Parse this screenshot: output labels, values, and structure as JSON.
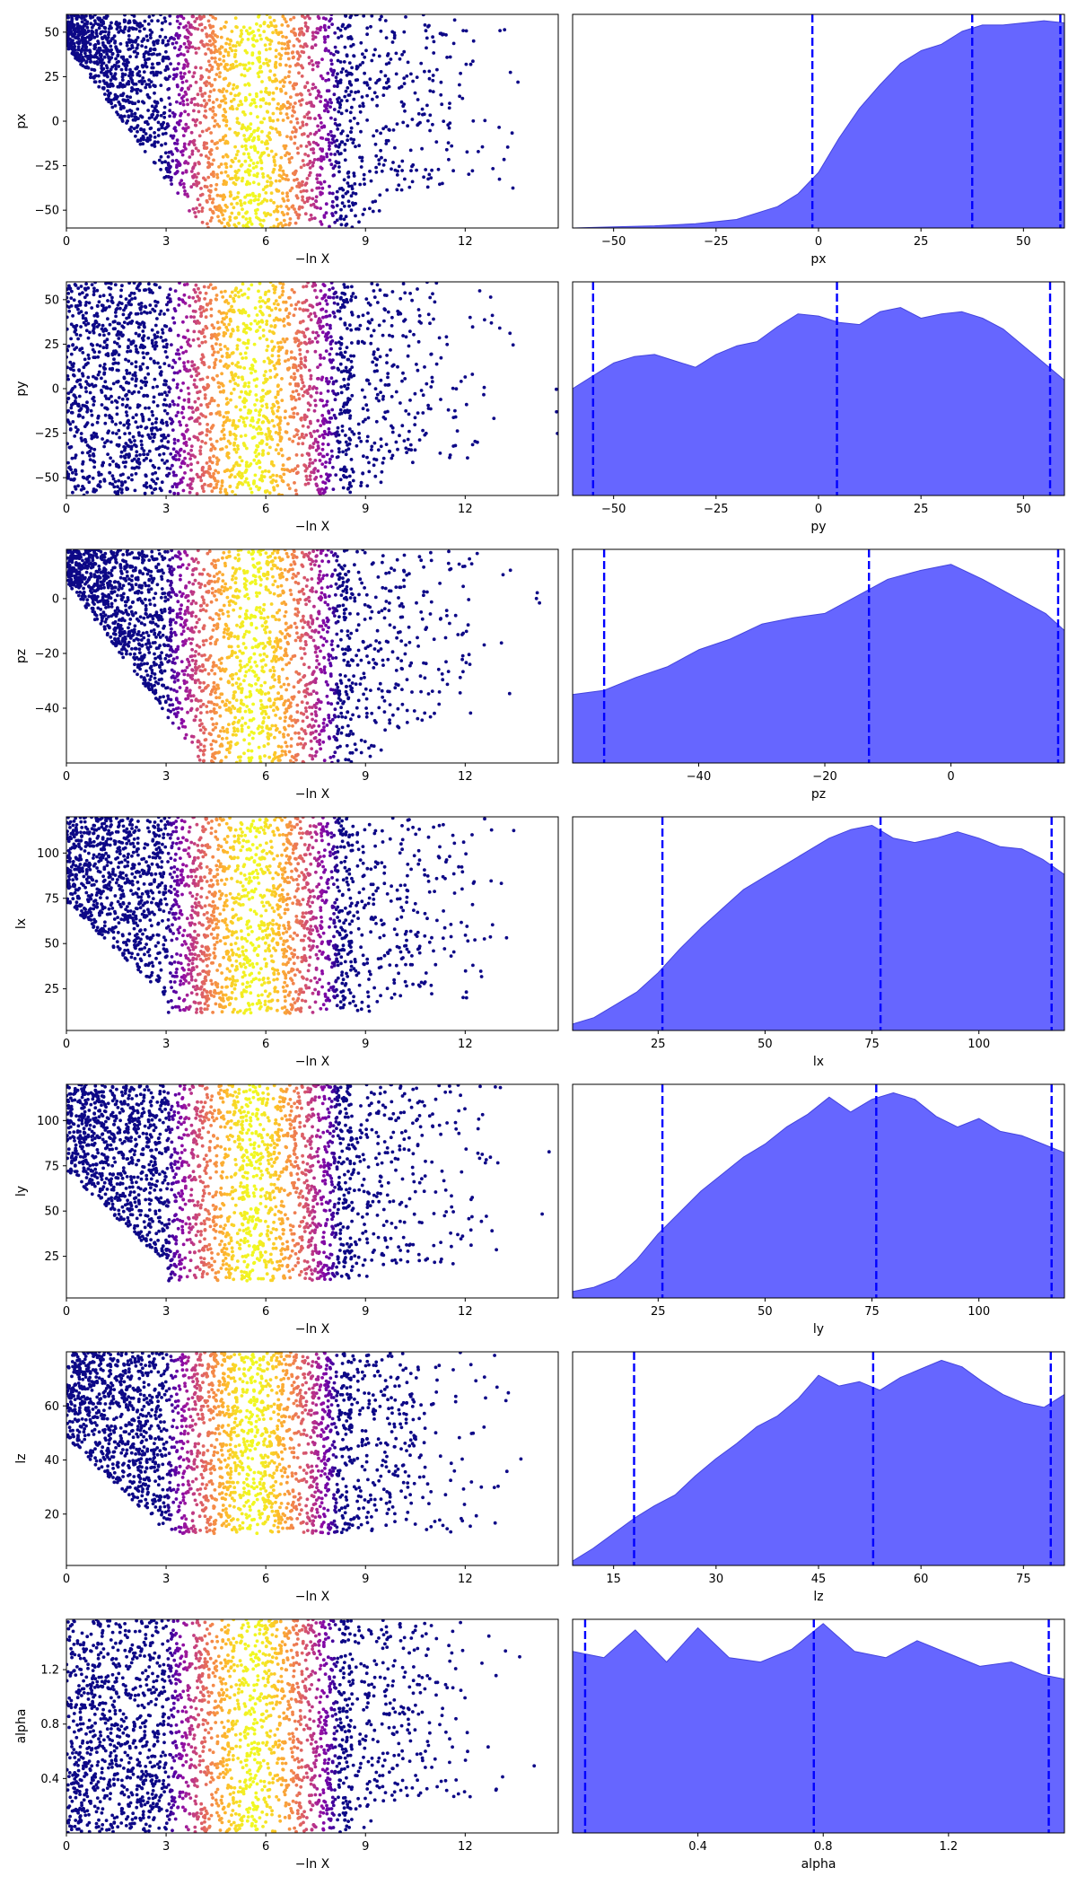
{
  "style": {
    "kde_fill": "#6666ff",
    "kde_edge": "#4444dd",
    "marker_color": "#0000ff",
    "colormap": "plasma"
  },
  "chart_data": [
    {
      "type": "scatter",
      "name": "px",
      "xlabel": "−ln X",
      "ylabel": "px",
      "xlim": [
        0,
        14.8
      ],
      "ylim": [
        -60,
        60
      ],
      "xticks": [
        "0",
        "3",
        "6",
        "9",
        "12"
      ],
      "xtick_values": [
        0,
        3,
        6,
        9,
        12
      ],
      "yticks": [
        "−50",
        "−25",
        "0",
        "25",
        "50"
      ],
      "ytick_values": [
        -50,
        -25,
        0,
        25,
        50
      ],
      "color_peak_x": 5.6,
      "spread": 4.8,
      "min_rel": 0.0,
      "trend": "rising"
    },
    {
      "type": "area",
      "name": "px",
      "xlabel": "px",
      "xlim": [
        -60,
        60
      ],
      "xticks": [
        "−50",
        "−25",
        "0",
        "25",
        "50"
      ],
      "xtick_values": [
        -50,
        -25,
        0,
        25,
        50
      ],
      "markers": [
        -1.5,
        37.5,
        59
      ],
      "x": [
        -60,
        -50,
        -40,
        -30,
        -20,
        -10,
        -5,
        0,
        5,
        10,
        15,
        20,
        25,
        30,
        35,
        40,
        45,
        50,
        55,
        60
      ],
      "density": [
        0.0,
        0.005,
        0.01,
        0.02,
        0.04,
        0.1,
        0.16,
        0.26,
        0.42,
        0.56,
        0.67,
        0.77,
        0.83,
        0.86,
        0.92,
        0.95,
        0.95,
        0.96,
        0.97,
        0.96
      ]
    },
    {
      "type": "scatter",
      "name": "py",
      "xlabel": "−ln X",
      "ylabel": "py",
      "xlim": [
        0,
        14.8
      ],
      "ylim": [
        -60,
        60
      ],
      "xticks": [
        "0",
        "3",
        "6",
        "9",
        "12"
      ],
      "xtick_values": [
        0,
        3,
        6,
        9,
        12
      ],
      "yticks": [
        "−50",
        "−25",
        "0",
        "25",
        "50"
      ],
      "ytick_values": [
        -50,
        -25,
        0,
        25,
        50
      ],
      "color_peak_x": 5.6,
      "spread": 3.6,
      "min_rel": 0.0,
      "trend": "none"
    },
    {
      "type": "area",
      "name": "py",
      "xlabel": "py",
      "xlim": [
        -60,
        60
      ],
      "xticks": [
        "−50",
        "−25",
        "0",
        "25",
        "50"
      ],
      "xtick_values": [
        -50,
        -25,
        0,
        25,
        50
      ],
      "markers": [
        -55,
        4.5,
        56.5
      ],
      "x": [
        -60,
        -55,
        -50,
        -45,
        -40,
        -35,
        -30,
        -25,
        -20,
        -15,
        -10,
        -5,
        0,
        5,
        10,
        15,
        20,
        25,
        30,
        35,
        40,
        45,
        50,
        55,
        60
      ],
      "density": [
        0.5,
        0.56,
        0.62,
        0.65,
        0.66,
        0.63,
        0.6,
        0.66,
        0.7,
        0.72,
        0.79,
        0.85,
        0.84,
        0.81,
        0.8,
        0.86,
        0.88,
        0.83,
        0.85,
        0.86,
        0.83,
        0.78,
        0.7,
        0.62,
        0.54
      ]
    },
    {
      "type": "scatter",
      "name": "pz",
      "xlabel": "−ln X",
      "ylabel": "pz",
      "xlim": [
        0,
        14.8
      ],
      "ylim": [
        -60,
        18
      ],
      "xticks": [
        "0",
        "3",
        "6",
        "9",
        "12"
      ],
      "xtick_values": [
        0,
        3,
        6,
        9,
        12
      ],
      "yticks": [
        "−40",
        "−20",
        "0"
      ],
      "ytick_values": [
        -40,
        -20,
        0
      ],
      "color_peak_x": 5.6,
      "spread": 4.0,
      "min_rel": 0.0,
      "trend": "rising"
    },
    {
      "type": "area",
      "name": "pz",
      "xlabel": "pz",
      "xlim": [
        -60,
        18
      ],
      "xticks": [
        "−40",
        "−20",
        "0"
      ],
      "xtick_values": [
        -40,
        -20,
        0
      ],
      "markers": [
        -55,
        -13,
        17
      ],
      "x": [
        -60,
        -55,
        -50,
        -45,
        -40,
        -35,
        -30,
        -25,
        -20,
        -15,
        -10,
        -5,
        0,
        5,
        10,
        15,
        18
      ],
      "density": [
        0.32,
        0.34,
        0.4,
        0.45,
        0.53,
        0.58,
        0.65,
        0.68,
        0.7,
        0.78,
        0.86,
        0.9,
        0.93,
        0.86,
        0.78,
        0.7,
        0.62
      ]
    },
    {
      "type": "scatter",
      "name": "lx",
      "xlabel": "−ln X",
      "ylabel": "lx",
      "xlim": [
        0,
        14.8
      ],
      "ylim": [
        2,
        120
      ],
      "xticks": [
        "0",
        "3",
        "6",
        "9",
        "12"
      ],
      "xtick_values": [
        0,
        3,
        6,
        9,
        12
      ],
      "yticks": [
        "25",
        "50",
        "75",
        "100"
      ],
      "ytick_values": [
        25,
        50,
        75,
        100
      ],
      "color_peak_x": 5.6,
      "spread": 4.0,
      "min_rel": 0.08,
      "trend": "rising"
    },
    {
      "type": "area",
      "name": "lx",
      "xlabel": "lx",
      "xlim": [
        5,
        120
      ],
      "xticks": [
        "25",
        "50",
        "75",
        "100"
      ],
      "xtick_values": [
        25,
        50,
        75,
        100
      ],
      "markers": [
        26,
        77,
        117
      ],
      "x": [
        5,
        10,
        15,
        20,
        25,
        30,
        35,
        40,
        45,
        50,
        55,
        60,
        65,
        70,
        75,
        80,
        85,
        90,
        95,
        100,
        105,
        110,
        115,
        120
      ],
      "density": [
        0.03,
        0.06,
        0.12,
        0.18,
        0.27,
        0.38,
        0.48,
        0.57,
        0.66,
        0.72,
        0.78,
        0.84,
        0.9,
        0.94,
        0.96,
        0.9,
        0.88,
        0.9,
        0.93,
        0.9,
        0.86,
        0.85,
        0.8,
        0.73
      ]
    },
    {
      "type": "scatter",
      "name": "ly",
      "xlabel": "−ln X",
      "ylabel": "ly",
      "xlim": [
        0,
        14.8
      ],
      "ylim": [
        2,
        120
      ],
      "xticks": [
        "0",
        "3",
        "6",
        "9",
        "12"
      ],
      "xtick_values": [
        0,
        3,
        6,
        9,
        12
      ],
      "yticks": [
        "25",
        "50",
        "75",
        "100"
      ],
      "ytick_values": [
        25,
        50,
        75,
        100
      ],
      "color_peak_x": 5.6,
      "spread": 4.0,
      "min_rel": 0.08,
      "trend": "rising"
    },
    {
      "type": "area",
      "name": "ly",
      "xlabel": "ly",
      "xlim": [
        5,
        120
      ],
      "xticks": [
        "25",
        "50",
        "75",
        "100"
      ],
      "xtick_values": [
        25,
        50,
        75,
        100
      ],
      "markers": [
        26,
        76,
        117
      ],
      "x": [
        5,
        10,
        15,
        20,
        25,
        30,
        35,
        40,
        45,
        50,
        55,
        60,
        65,
        70,
        75,
        80,
        85,
        90,
        95,
        100,
        105,
        110,
        115,
        120
      ],
      "density": [
        0.03,
        0.05,
        0.09,
        0.18,
        0.3,
        0.4,
        0.5,
        0.58,
        0.66,
        0.72,
        0.8,
        0.86,
        0.94,
        0.87,
        0.93,
        0.96,
        0.93,
        0.85,
        0.8,
        0.84,
        0.78,
        0.76,
        0.72,
        0.68
      ]
    },
    {
      "type": "scatter",
      "name": "lz",
      "xlabel": "−ln X",
      "ylabel": "lz",
      "xlim": [
        0,
        14.8
      ],
      "ylim": [
        1,
        80
      ],
      "xticks": [
        "0",
        "3",
        "6",
        "9",
        "12"
      ],
      "xtick_values": [
        0,
        3,
        6,
        9,
        12
      ],
      "yticks": [
        "20",
        "40",
        "60"
      ],
      "ytick_values": [
        20,
        40,
        60
      ],
      "color_peak_x": 5.6,
      "spread": 4.0,
      "min_rel": 0.15,
      "trend": "rising"
    },
    {
      "type": "area",
      "name": "lz",
      "xlabel": "lz",
      "xlim": [
        9,
        81
      ],
      "xticks": [
        "15",
        "30",
        "45",
        "60",
        "75"
      ],
      "xtick_values": [
        15,
        30,
        45,
        60,
        75
      ],
      "markers": [
        18,
        53,
        79
      ],
      "x": [
        9,
        12,
        15,
        18,
        21,
        24,
        27,
        30,
        33,
        36,
        39,
        42,
        45,
        48,
        51,
        54,
        57,
        60,
        63,
        66,
        69,
        72,
        75,
        78,
        81
      ],
      "density": [
        0.02,
        0.08,
        0.15,
        0.22,
        0.28,
        0.33,
        0.42,
        0.5,
        0.57,
        0.65,
        0.7,
        0.78,
        0.89,
        0.84,
        0.86,
        0.82,
        0.88,
        0.92,
        0.96,
        0.93,
        0.86,
        0.8,
        0.76,
        0.74,
        0.8
      ]
    },
    {
      "type": "scatter",
      "name": "alpha",
      "xlabel": "−ln X",
      "ylabel": "alpha",
      "xlim": [
        0,
        14.8
      ],
      "ylim": [
        0,
        1.57
      ],
      "xticks": [
        "0",
        "3",
        "6",
        "9",
        "12"
      ],
      "xtick_values": [
        0,
        3,
        6,
        9,
        12
      ],
      "yticks": [
        "0.4",
        "0.8",
        "1.2"
      ],
      "ytick_values": [
        0.4,
        0.8,
        1.2
      ],
      "color_peak_x": 5.6,
      "spread": 3.8,
      "min_rel": 0.0,
      "trend": "none"
    },
    {
      "type": "area",
      "name": "alpha",
      "xlabel": "alpha",
      "xlim": [
        0,
        1.57
      ],
      "xticks": [
        "0.4",
        "0.8",
        "1.2"
      ],
      "xtick_values": [
        0.4,
        0.8,
        1.2
      ],
      "markers": [
        0.04,
        0.77,
        1.52
      ],
      "x": [
        0,
        0.1,
        0.2,
        0.3,
        0.4,
        0.5,
        0.6,
        0.7,
        0.8,
        0.9,
        1.0,
        1.1,
        1.2,
        1.3,
        1.4,
        1.5,
        1.57
      ],
      "density": [
        0.85,
        0.82,
        0.95,
        0.8,
        0.96,
        0.82,
        0.8,
        0.86,
        0.98,
        0.85,
        0.82,
        0.9,
        0.84,
        0.78,
        0.8,
        0.74,
        0.72
      ]
    }
  ]
}
